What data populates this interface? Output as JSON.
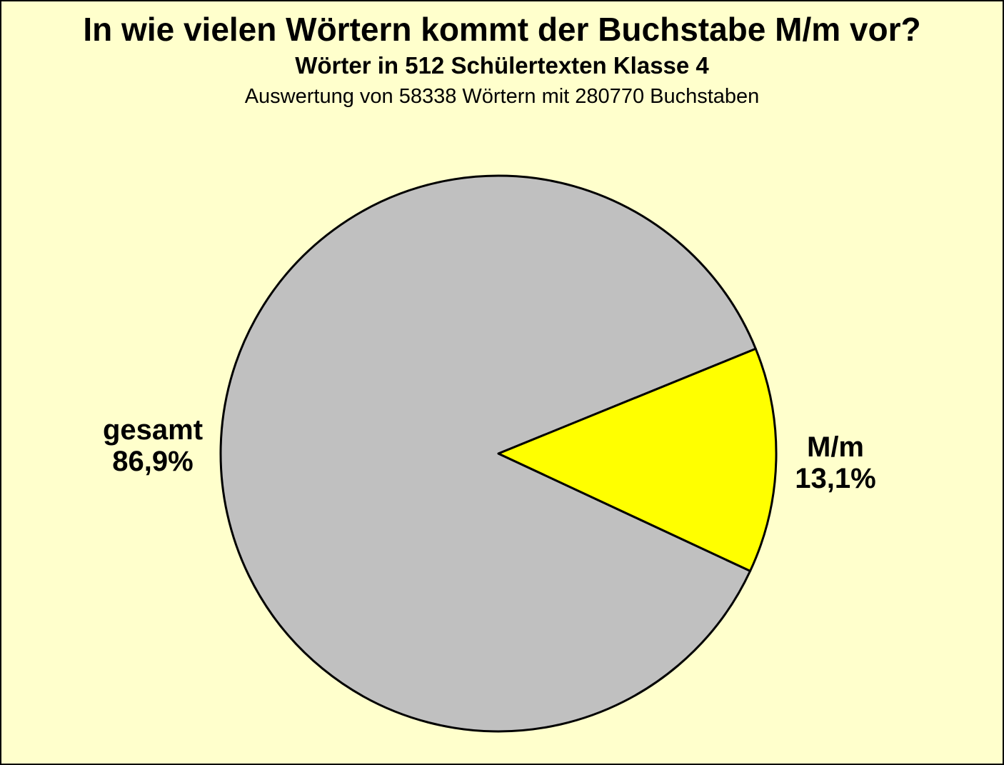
{
  "chart_data": {
    "type": "pie",
    "title": "In wie vielen Wörtern kommt der Buchstabe M/m vor?",
    "subtitle": "Wörter in 512 Schülertexten Klasse 4",
    "note": "Auswertung von 58338 Wörtern mit 280770 Buchstaben",
    "slices": [
      {
        "id": "gesamt",
        "name": "gesamt",
        "value": 86.9,
        "pct_label": "86,9%",
        "color": "#c0c0c0"
      },
      {
        "id": "mm",
        "name": "M/m",
        "value": 13.1,
        "pct_label": "13,1%",
        "color": "#ffff00"
      }
    ],
    "start_angle_deg": 25,
    "outline_color": "#000000",
    "background_color": "#ffffcc",
    "legend": "none",
    "label_placement": "outside-left-and-right"
  }
}
